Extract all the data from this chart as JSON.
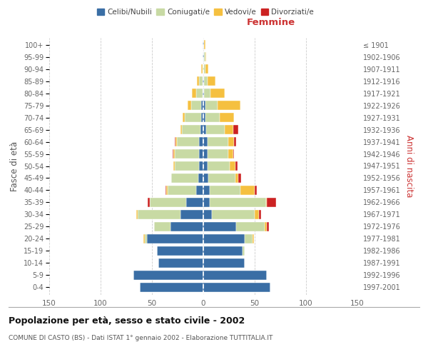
{
  "age_groups": [
    "0-4",
    "5-9",
    "10-14",
    "15-19",
    "20-24",
    "25-29",
    "30-34",
    "35-39",
    "40-44",
    "45-49",
    "50-54",
    "55-59",
    "60-64",
    "65-69",
    "70-74",
    "75-79",
    "80-84",
    "85-89",
    "90-94",
    "95-99",
    "100+"
  ],
  "birth_years": [
    "1997-2001",
    "1992-1996",
    "1987-1991",
    "1982-1986",
    "1977-1981",
    "1972-1976",
    "1967-1971",
    "1962-1966",
    "1957-1961",
    "1952-1956",
    "1947-1951",
    "1942-1946",
    "1937-1941",
    "1932-1936",
    "1927-1931",
    "1922-1926",
    "1917-1921",
    "1912-1916",
    "1907-1911",
    "1902-1906",
    "≤ 1901"
  ],
  "males": {
    "celibi": [
      62,
      68,
      44,
      45,
      55,
      32,
      22,
      17,
      7,
      5,
      4,
      4,
      4,
      3,
      2,
      2,
      1,
      1,
      0,
      1,
      1
    ],
    "coniugati": [
      0,
      0,
      0,
      0,
      2,
      16,
      42,
      35,
      28,
      26,
      24,
      24,
      22,
      18,
      16,
      10,
      6,
      3,
      1,
      0,
      0
    ],
    "vedovi": [
      0,
      0,
      0,
      0,
      1,
      0,
      1,
      0,
      1,
      0,
      1,
      1,
      1,
      1,
      2,
      3,
      4,
      2,
      1,
      0,
      0
    ],
    "divorziati": [
      0,
      0,
      0,
      0,
      0,
      0,
      0,
      2,
      1,
      0,
      0,
      1,
      1,
      0,
      0,
      0,
      0,
      0,
      0,
      0,
      0
    ]
  },
  "females": {
    "nubili": [
      65,
      62,
      40,
      38,
      40,
      32,
      8,
      6,
      6,
      5,
      4,
      4,
      4,
      3,
      2,
      2,
      1,
      1,
      0,
      1,
      1
    ],
    "coniugate": [
      0,
      0,
      0,
      2,
      8,
      28,
      42,
      55,
      30,
      26,
      22,
      20,
      20,
      18,
      14,
      12,
      6,
      3,
      2,
      1,
      0
    ],
    "vedove": [
      0,
      0,
      0,
      0,
      1,
      2,
      4,
      1,
      14,
      3,
      5,
      5,
      6,
      8,
      14,
      22,
      14,
      8,
      3,
      1,
      1
    ],
    "divorziate": [
      0,
      0,
      0,
      0,
      0,
      2,
      2,
      9,
      2,
      3,
      2,
      1,
      2,
      5,
      0,
      0,
      0,
      0,
      0,
      0,
      0
    ]
  },
  "colors": {
    "celibi": "#3a6ea5",
    "coniugati": "#c8daa4",
    "vedovi": "#f5c040",
    "divorziati": "#cc2222"
  },
  "title": "Popolazione per età, sesso e stato civile - 2002",
  "subtitle": "COMUNE DI CASTO (BS) - Dati ISTAT 1° gennaio 2002 - Elaborazione TUTTITALIA.IT",
  "xlabel_right": "Femmine",
  "ylabel_left": "Fasce di età",
  "ylabel_right": "Anni di nascita",
  "xlim": 150,
  "background_color": "#ffffff",
  "grid_color": "#cccccc"
}
